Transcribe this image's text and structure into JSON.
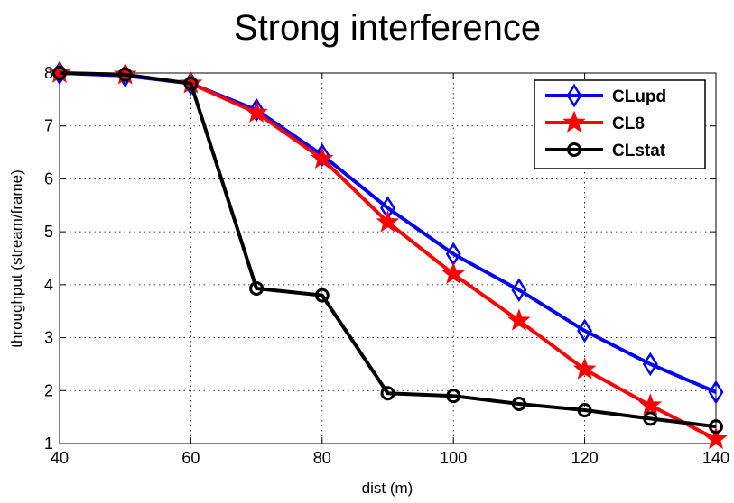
{
  "chart_data": {
    "type": "line",
    "title": "Strong interference",
    "xlabel": "dist (m)",
    "ylabel": "throughput (stream/frame)",
    "xlim": [
      40,
      140
    ],
    "ylim": [
      1,
      8
    ],
    "xticks": [
      40,
      60,
      80,
      100,
      120,
      140
    ],
    "yticks": [
      1,
      2,
      3,
      4,
      5,
      6,
      7,
      8
    ],
    "grid": true,
    "legend_position": "top-right",
    "x": [
      40,
      50,
      60,
      70,
      80,
      90,
      100,
      110,
      120,
      130,
      140
    ],
    "series": [
      {
        "name": "CLupd",
        "color": "#0000ff",
        "marker": "diamond",
        "values": [
          8.0,
          7.95,
          7.8,
          7.3,
          6.45,
          5.45,
          4.58,
          3.9,
          3.13,
          2.5,
          1.97
        ]
      },
      {
        "name": "CL8",
        "color": "#ff0000",
        "marker": "star",
        "values": [
          8.0,
          7.97,
          7.8,
          7.25,
          6.38,
          5.18,
          4.2,
          3.32,
          2.4,
          1.72,
          1.08
        ]
      },
      {
        "name": "CLstat",
        "color": "#000000",
        "marker": "circle",
        "values": [
          8.0,
          7.97,
          7.8,
          3.93,
          3.8,
          1.95,
          1.9,
          1.75,
          1.63,
          1.47,
          1.32
        ]
      }
    ]
  }
}
